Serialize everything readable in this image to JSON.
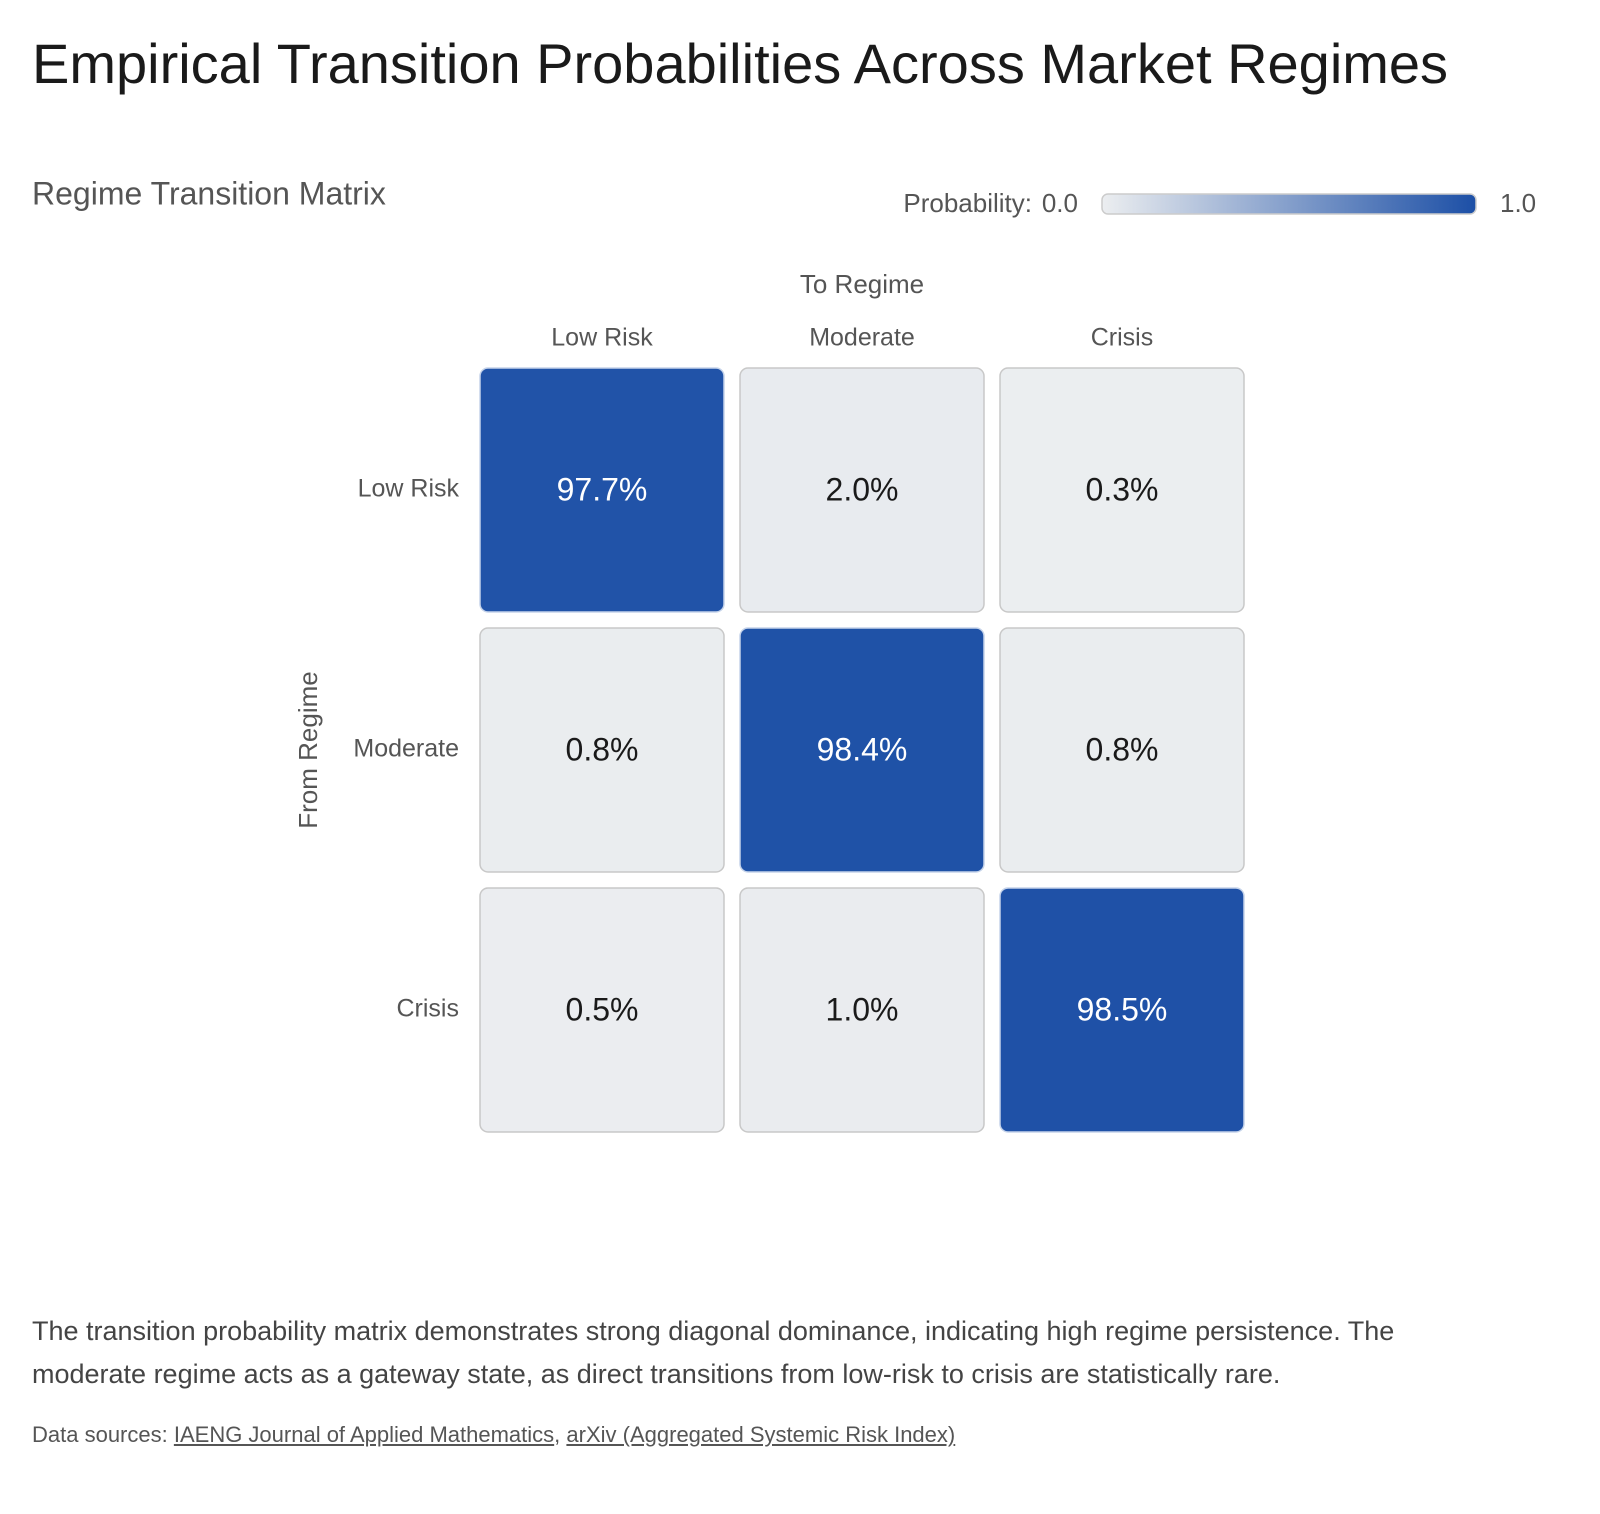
{
  "chart_data": {
    "type": "heatmap",
    "title": "Empirical Transition Probabilities Across Market Regimes",
    "subtitle": "Regime Transition Matrix",
    "x_label": "To Regime",
    "y_label": "From Regime",
    "x_categories": [
      "Low Risk",
      "Moderate",
      "Crisis"
    ],
    "y_categories": [
      "Low Risk",
      "Moderate",
      "Crisis"
    ],
    "values": [
      [
        0.977,
        0.02,
        0.003
      ],
      [
        0.008,
        0.984,
        0.008
      ],
      [
        0.005,
        0.01,
        0.985
      ]
    ],
    "value_labels": [
      [
        "97.7%",
        "2.0%",
        "0.3%"
      ],
      [
        "0.8%",
        "98.4%",
        "0.8%"
      ],
      [
        "0.5%",
        "1.0%",
        "98.5%"
      ]
    ],
    "colorbar": {
      "label": "Probability:",
      "clim": [
        0,
        1
      ],
      "ticks": [
        {
          "value": 0,
          "label": "0.0"
        },
        {
          "value": 1,
          "label": "1.0"
        }
      ]
    },
    "colormap": [
      "#eceef0",
      "#1c4fa6"
    ]
  },
  "description": "The transition probability matrix demonstrates strong diagonal dominance, indicating high regime persistence. The moderate regime acts as a gateway state, as direct transitions from low-risk to crisis are statistically rare.",
  "sources": {
    "label": "Data sources:",
    "separator": ",",
    "links": [
      "IAENG Journal of Applied Mathematics",
      "arXiv (Aggregated Systemic Risk Index)"
    ]
  }
}
